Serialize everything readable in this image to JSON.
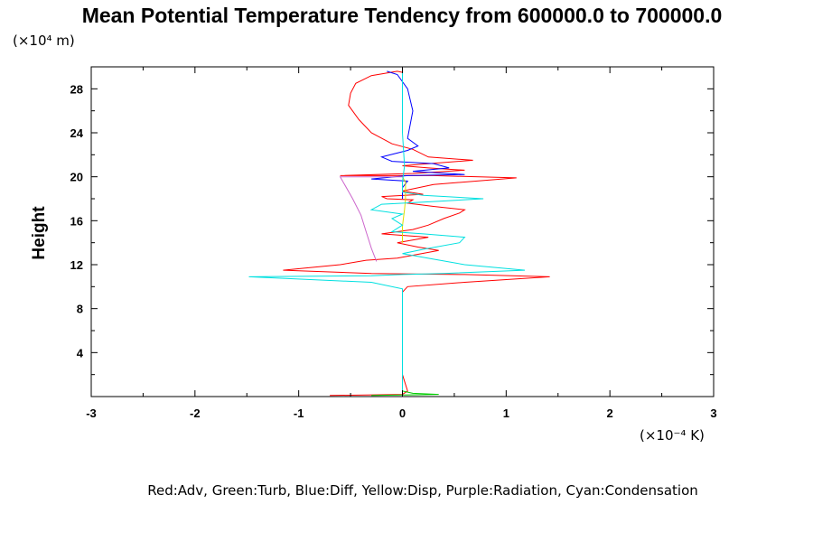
{
  "chart_data": {
    "type": "line",
    "title": "Mean Potential Temperature Tendency from 600000.0 to 700000.0",
    "ylabel": "Height",
    "xlabel": "",
    "y_scale_label": "(×10⁴ m)",
    "x_scale_label": "(×10⁻⁴ K)",
    "xlim": [
      -3,
      3
    ],
    "ylim": [
      0,
      30
    ],
    "x_ticks": [
      -3,
      -2,
      -1,
      0,
      1,
      2,
      3
    ],
    "x_tick_labels": [
      "-3",
      "-2",
      "-1",
      "0",
      "1",
      "2",
      "3"
    ],
    "y_ticks": [
      4,
      8,
      12,
      16,
      20,
      24,
      28
    ],
    "y_tick_labels": [
      "4",
      "8",
      "12",
      "16",
      "20",
      "24",
      "28"
    ],
    "grid": false,
    "legend_text": "Red:Adv,  Green:Turb,  Blue:Diff,  Yellow:Disp,  Purple:Radiation,  Cyan:Condensation",
    "series": [
      {
        "name": "Adv",
        "color": "#ff0000",
        "points": [
          [
            -0.7,
            0.1
          ],
          [
            0.0,
            0.2
          ],
          [
            0.05,
            0.5
          ],
          [
            0.0,
            2
          ],
          [
            0.0,
            6
          ],
          [
            0.0,
            9.5
          ],
          [
            0.05,
            10.0
          ],
          [
            0.6,
            10.4
          ],
          [
            1.42,
            10.9
          ],
          [
            0.6,
            11.1
          ],
          [
            -0.3,
            11.2
          ],
          [
            -1.15,
            11.5
          ],
          [
            -0.6,
            12.0
          ],
          [
            -0.35,
            12.4
          ],
          [
            -0.05,
            12.6
          ],
          [
            0.35,
            13.3
          ],
          [
            0.15,
            13.6
          ],
          [
            -0.05,
            14.0
          ],
          [
            0.25,
            14.5
          ],
          [
            -0.2,
            14.8
          ],
          [
            0.1,
            15.2
          ],
          [
            0.25,
            15.6
          ],
          [
            0.4,
            16.2
          ],
          [
            0.55,
            16.7
          ],
          [
            0.6,
            17.0
          ],
          [
            0.3,
            17.3
          ],
          [
            0.05,
            17.6
          ],
          [
            0.1,
            17.9
          ],
          [
            -0.15,
            18.0
          ],
          [
            -0.2,
            18.2
          ],
          [
            0.2,
            18.4
          ],
          [
            0.0,
            18.7
          ],
          [
            0.3,
            19.3
          ],
          [
            1.1,
            19.9
          ],
          [
            0.3,
            20.1
          ],
          [
            -0.6,
            20.1
          ],
          [
            0.1,
            20.3
          ],
          [
            0.6,
            20.6
          ],
          [
            0.25,
            20.8
          ],
          [
            0.0,
            21.0
          ],
          [
            0.68,
            21.5
          ],
          [
            0.25,
            21.8
          ],
          [
            0.1,
            22.5
          ],
          [
            -0.1,
            23.0
          ],
          [
            -0.3,
            24.0
          ],
          [
            -0.42,
            25.2
          ],
          [
            -0.52,
            26.5
          ],
          [
            -0.5,
            27.6
          ],
          [
            -0.45,
            28.5
          ],
          [
            -0.3,
            29.2
          ],
          [
            -0.05,
            29.6
          ],
          [
            0.0,
            29.5
          ]
        ]
      },
      {
        "name": "Turb",
        "color": "#00cc00",
        "points": [
          [
            -0.3,
            0.1
          ],
          [
            0.0,
            0.15
          ],
          [
            0.35,
            0.2
          ],
          [
            0.1,
            0.3
          ],
          [
            0.0,
            0.5
          ],
          [
            0.0,
            0.8
          ]
        ]
      },
      {
        "name": "Diff",
        "color": "#0000ff",
        "points": [
          [
            0.0,
            18.0
          ],
          [
            0.0,
            19.0
          ],
          [
            0.05,
            19.6
          ],
          [
            -0.3,
            19.8
          ],
          [
            0.05,
            20.1
          ],
          [
            0.6,
            20.2
          ],
          [
            0.1,
            20.5
          ],
          [
            0.45,
            20.8
          ],
          [
            0.3,
            21.2
          ],
          [
            -0.1,
            21.4
          ],
          [
            -0.2,
            21.8
          ],
          [
            0.05,
            22.4
          ],
          [
            0.15,
            22.8
          ],
          [
            0.05,
            23.5
          ],
          [
            0.1,
            26.0
          ],
          [
            0.05,
            28.0
          ],
          [
            -0.05,
            29.3
          ],
          [
            -0.15,
            29.6
          ]
        ]
      },
      {
        "name": "Disp",
        "color": "#dddd00",
        "points": [
          [
            0.0,
            14.0
          ],
          [
            0.0,
            15.5
          ],
          [
            0.02,
            17.0
          ],
          [
            0.03,
            18.0
          ],
          [
            0.03,
            19.5
          ],
          [
            0.0,
            20.0
          ]
        ]
      },
      {
        "name": "Radiation",
        "color": "#cc66cc",
        "points": [
          [
            -0.25,
            12.3
          ],
          [
            -0.3,
            13.5
          ],
          [
            -0.35,
            15.0
          ],
          [
            -0.4,
            16.5
          ],
          [
            -0.48,
            18.0
          ],
          [
            -0.6,
            20.0
          ],
          [
            -0.1,
            20.0
          ],
          [
            0.0,
            20.0
          ]
        ]
      },
      {
        "name": "Condensation",
        "color": "#00e0e0",
        "points": [
          [
            0.0,
            0.1
          ],
          [
            0.0,
            2
          ],
          [
            0.0,
            6
          ],
          [
            0.0,
            9.8
          ],
          [
            -0.3,
            10.4
          ],
          [
            -1.48,
            10.9
          ],
          [
            -0.3,
            11.0
          ],
          [
            0.0,
            11.1
          ],
          [
            0.4,
            11.2
          ],
          [
            1.18,
            11.5
          ],
          [
            0.6,
            12.0
          ],
          [
            0.3,
            12.5
          ],
          [
            0.0,
            13.0
          ],
          [
            0.2,
            13.4
          ],
          [
            0.55,
            14.0
          ],
          [
            0.6,
            14.5
          ],
          [
            0.2,
            14.8
          ],
          [
            -0.1,
            15.0
          ],
          [
            0.0,
            15.6
          ],
          [
            -0.1,
            16.2
          ],
          [
            0.0,
            16.6
          ],
          [
            -0.3,
            17.0
          ],
          [
            -0.2,
            17.5
          ],
          [
            0.2,
            17.7
          ],
          [
            0.78,
            18.0
          ],
          [
            0.2,
            18.3
          ],
          [
            0.0,
            18.6
          ],
          [
            0.0,
            19.5
          ],
          [
            0.02,
            21.0
          ],
          [
            0.0,
            24.0
          ],
          [
            0.0,
            27.0
          ],
          [
            0.0,
            29.6
          ]
        ]
      }
    ]
  }
}
